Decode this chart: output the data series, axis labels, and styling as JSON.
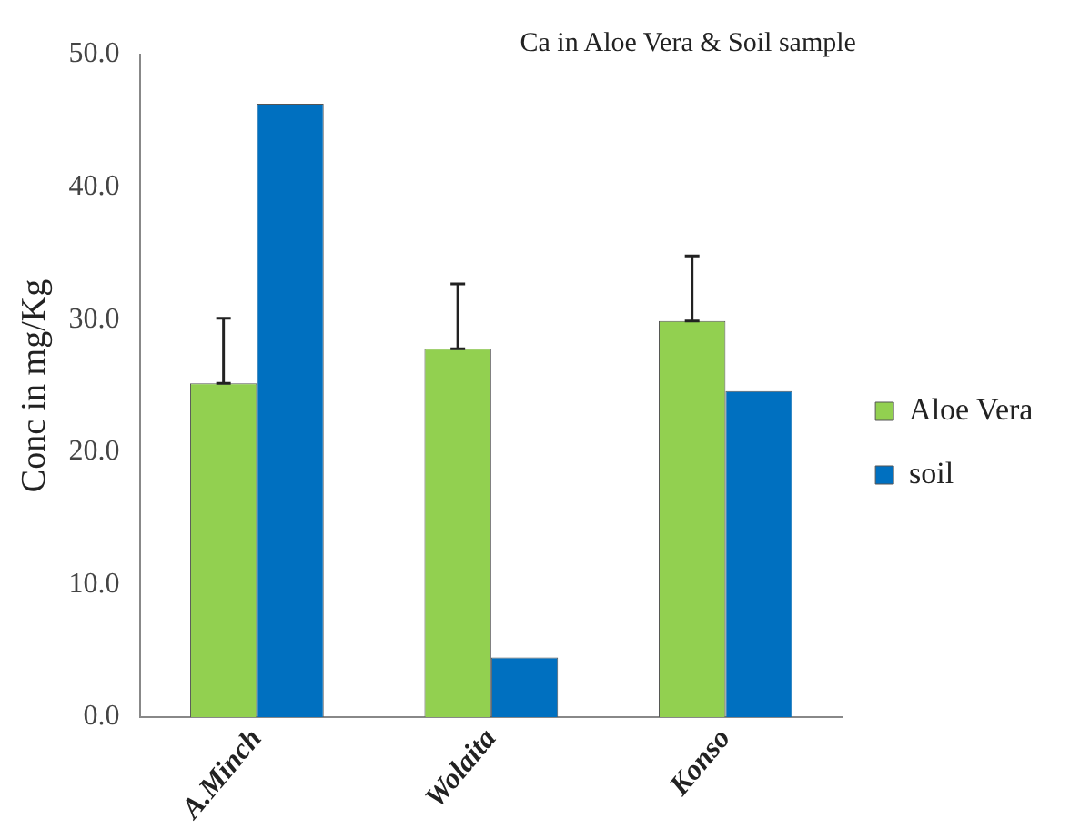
{
  "chart_data": {
    "type": "bar",
    "title": "Ca in Aloe Vera & Soil sample",
    "ylabel": "Conc in mg/Kg",
    "categories": [
      "A.Minch",
      "Wolaita",
      "Konso"
    ],
    "series": [
      {
        "name": "Aloe Vera",
        "color": "#92d050",
        "values": [
          25.2,
          27.8,
          29.9
        ],
        "errors": [
          [
            25.2,
            30.1
          ],
          [
            27.8,
            32.7
          ],
          [
            29.9,
            34.8
          ]
        ]
      },
      {
        "name": "soil",
        "color": "#0070c0",
        "values": [
          46.3,
          4.5,
          24.6
        ]
      }
    ],
    "ylim": [
      0,
      50
    ],
    "yticks": [
      {
        "value": 0,
        "label": "0.0"
      },
      {
        "value": 10,
        "label": "10.0"
      },
      {
        "value": 20,
        "label": "20.0"
      },
      {
        "value": 30,
        "label": "30.0"
      },
      {
        "value": 40,
        "label": "40.0"
      },
      {
        "value": 50,
        "label": "50.0"
      }
    ],
    "grid": false,
    "legend": "right"
  }
}
